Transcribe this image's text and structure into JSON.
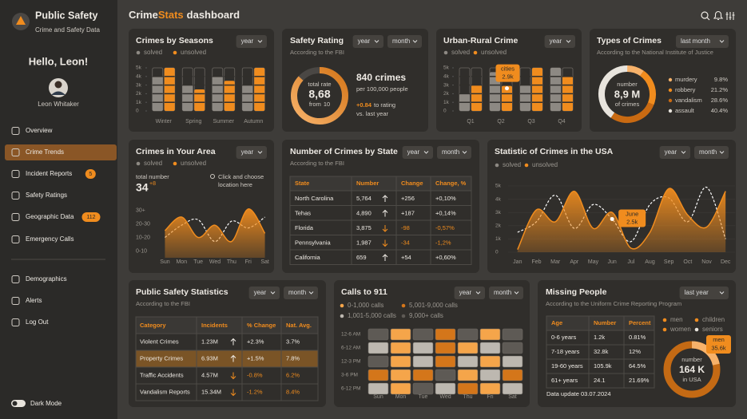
{
  "sidebar": {
    "brand": "Public Safety",
    "tagline": "Crime and Safety Data",
    "greeting": "Hello, Leon!",
    "user": "Leon Whitaker",
    "nav": [
      {
        "label": "Overview"
      },
      {
        "label": "Crime Trends",
        "active": true
      },
      {
        "label": "Incident Reports",
        "badge": "5"
      },
      {
        "label": "Safety Ratings"
      },
      {
        "label": "Geographic Data",
        "badge": "112"
      },
      {
        "label": "Emergency Calls"
      }
    ],
    "nav2": [
      {
        "label": "Demographics"
      },
      {
        "label": "Alerts"
      },
      {
        "label": "Log Out"
      }
    ],
    "dark_mode": "Dark Mode"
  },
  "header": {
    "title": [
      "Crime",
      "Stats",
      "dashboard"
    ]
  },
  "seasons": {
    "title": "Crimes by Seasons",
    "filters": [
      "year"
    ],
    "categories": [
      "Winter",
      "Spring",
      "Summer",
      "Autumn"
    ],
    "series": [
      {
        "name": "solved",
        "color": "#8d8983",
        "values": [
          4000,
          3000,
          4000,
          3000
        ]
      },
      {
        "name": "unsolved",
        "color": "#f08c1e",
        "values": [
          5000,
          2500,
          3500,
          5000
        ]
      }
    ],
    "ylim": [
      0,
      5000
    ],
    "yticks": [
      0,
      {
        "value": 1000,
        "label": "1k"
      },
      {
        "value": 2000,
        "label": "2k"
      },
      {
        "value": 3000,
        "label": "3k"
      },
      {
        "value": 4000,
        "label": "4k"
      },
      {
        "value": 5000,
        "label": "5k"
      }
    ]
  },
  "safety": {
    "title": "Safety Rating",
    "subtitle": "According to the FBI",
    "filters": [
      "year",
      "month"
    ],
    "rate_caption": "total rate",
    "rate": {
      "value": 8.68,
      "label": "8,68"
    },
    "max_prefix": "from",
    "max": 10,
    "crimes": "840 crimes",
    "crimes_note": "per 100,000 people",
    "delta": "+0.84",
    "delta_note": "to rating",
    "delta_note2": "vs. last year"
  },
  "urban": {
    "title": "Urban-Rural Crime",
    "filters": [
      "year"
    ],
    "categories": [
      "Q1",
      "Q2",
      "Q3",
      "Q4"
    ],
    "series": [
      {
        "name": "solved",
        "color": "#8d8983",
        "values": [
          2000,
          4500,
          3000,
          5000
        ]
      },
      {
        "name": "unsolved",
        "color": "#f08c1e",
        "values": [
          3000,
          2900,
          5000,
          4000
        ]
      }
    ],
    "ylim": [
      0,
      5000
    ],
    "yticks": [
      0,
      {
        "value": 1000,
        "label": "1k"
      },
      {
        "value": 2000,
        "label": "2k"
      },
      {
        "value": 3000,
        "label": "3k"
      },
      {
        "value": 4000,
        "label": "4k"
      },
      {
        "value": 5000,
        "label": "5k"
      }
    ],
    "tooltip": {
      "title": "cities",
      "label": "2.9k"
    }
  },
  "types": {
    "title": "Types of Crimes",
    "filters": [
      "last month"
    ],
    "subtitle": "According to the National Institute of Justice",
    "center": [
      "number",
      "8,9 M",
      "of crimes"
    ],
    "categories": [
      "murdery",
      "robbery",
      "vandalism",
      "assault"
    ],
    "values": [
      9.8,
      21.2,
      28.6,
      40.4
    ],
    "value_labels": [
      "9.8%",
      "21.2%",
      "28.6%",
      "40.4%"
    ],
    "colors": [
      "#f7b26a",
      "#f08c1e",
      "#c96a12",
      "#e8e4dd"
    ]
  },
  "area": {
    "title": "Crimes in Your Area",
    "filters": [
      "year"
    ],
    "total_caption": "total number",
    "total": 34,
    "total_delta": "+8",
    "hint": [
      "Click and choose",
      "location here"
    ],
    "categories": [
      "Sun",
      "Mon",
      "Tue",
      "Wed",
      "Thu",
      "Fri",
      "Sat"
    ],
    "ybands": [
      "0-10",
      "10-20",
      "20-30",
      "30+"
    ],
    "ylim": [
      0,
      40
    ],
    "series": [
      {
        "name": "solved",
        "color": "#ffffff",
        "values": [
          15,
          24,
          28,
          12,
          27,
          22,
          30
        ]
      },
      {
        "name": "unsolved",
        "color": "#f08c1e",
        "values": [
          20,
          30,
          15,
          24,
          12,
          36,
          18
        ]
      }
    ]
  },
  "states": {
    "title": "Number of Crimes by State",
    "subtitle": "According to the FBI",
    "filters": [
      "year",
      "month"
    ],
    "columns": [
      "State",
      "Number",
      "Change",
      "Change, %"
    ],
    "rows": [
      [
        "North Carolina",
        "5,764",
        "+256",
        "+0,10%"
      ],
      [
        "Tehas",
        "4,890",
        "+187",
        "+0,14%"
      ],
      [
        "Florida",
        "3,875",
        "-98",
        "-0,57%"
      ],
      [
        "Pennsylvania",
        "1,987",
        "-34",
        "-1,2%"
      ],
      [
        "California",
        "659",
        "+54",
        "+0,60%"
      ]
    ]
  },
  "usa": {
    "title": "Statistic of Crimes in the USA",
    "filters": [
      "year",
      "month"
    ],
    "categories": [
      "Jan",
      "Feb",
      "Mar",
      "Apr",
      "May",
      "Jun",
      "Jul",
      "Aug",
      "Sep",
      "Oct",
      "Nov",
      "Dec"
    ],
    "ylim": [
      0,
      5000
    ],
    "yticks": [
      0,
      {
        "value": 1000,
        "label": "1k"
      },
      {
        "value": 2000,
        "label": "2k"
      },
      {
        "value": 3000,
        "label": "3k"
      },
      {
        "value": 4000,
        "label": "4k"
      },
      {
        "value": 5000,
        "label": "5k"
      }
    ],
    "series": [
      {
        "name": "solved",
        "color": "#ffffff",
        "values": [
          1500,
          2300,
          4300,
          1800,
          3600,
          2500,
          800,
          3600,
          4100,
          2300,
          4900,
          1000
        ]
      },
      {
        "name": "unsolved",
        "color": "#f08c1e",
        "values": [
          200,
          3200,
          2300,
          4600,
          1800,
          3000,
          300,
          1500,
          4800,
          2800,
          1900,
          4600
        ]
      }
    ],
    "tooltip": {
      "title": "June",
      "label": "2.5k"
    }
  },
  "stats": {
    "title": "Public Safety Statistics",
    "subtitle": "According to the FBI",
    "filters": [
      "year",
      "month"
    ],
    "columns": [
      "Category",
      "Incidents",
      "% Change",
      "Nat. Avg."
    ],
    "rows": [
      {
        "category": "Violent Crimes",
        "incidents": "1.23M",
        "change": "+2.3%",
        "avg": "3.7%"
      },
      {
        "category": "Property Crimes",
        "incidents": "6.93M",
        "change": "+1.5%",
        "avg": "7.8%",
        "highlighted": true
      },
      {
        "category": "Traffic Accidents",
        "incidents": "4.57M",
        "change": "-0.8%",
        "avg": "6.2%"
      },
      {
        "category": "Vandalism Reports",
        "incidents": "15.34M",
        "change": "-1.2%",
        "avg": "8.4%"
      }
    ]
  },
  "calls": {
    "title": "Calls to 911",
    "filters": [
      "year",
      "month"
    ],
    "legend": [
      {
        "name": "0-1,000 calls",
        "color": "#f5a54a"
      },
      {
        "name": "5,001-9,000 calls",
        "color": "#d4761a"
      },
      {
        "name": "1,001-5,000 calls",
        "color": "#bdb8b0"
      },
      {
        "name": "9,000+ calls",
        "color": "#5e5a55"
      }
    ],
    "rows": [
      "12-6 AM",
      "6-12 AM",
      "12-3 PM",
      "3-6 PM",
      "6-12 PM"
    ],
    "days": [
      "Sun",
      "Mon",
      "Tue",
      "Wed",
      "Thu",
      "Fri",
      "Sat"
    ],
    "levels": [
      [
        3,
        0,
        3,
        1,
        3,
        0,
        3
      ],
      [
        2,
        0,
        2,
        1,
        0,
        2,
        3
      ],
      [
        3,
        0,
        2,
        1,
        2,
        0,
        2
      ],
      [
        1,
        0,
        1,
        3,
        0,
        2,
        1
      ],
      [
        2,
        0,
        3,
        2,
        1,
        0,
        2
      ]
    ]
  },
  "missing": {
    "title": "Missing People",
    "filters": [
      "last year"
    ],
    "subtitle": "According to the Uniform Crime Reporting Program",
    "columns": [
      "Age",
      "Number",
      "Percent"
    ],
    "rows": [
      [
        "0-6 years",
        "1.2k",
        "0.81%"
      ],
      [
        "7-18 years",
        "32.8k",
        "12%"
      ],
      [
        "19-60 years",
        "105.9k",
        "64.5%"
      ],
      [
        "61+ years",
        "24.1",
        "21.69%"
      ]
    ],
    "legend": [
      {
        "name": "men",
        "color": "#f08c1e"
      },
      {
        "name": "children",
        "color": "#f08c1e"
      },
      {
        "name": "women",
        "color": "#f08c1e"
      },
      {
        "name": "seniors",
        "color": "#e8e4dd"
      }
    ],
    "center": [
      "number",
      "in USA"
    ],
    "total": {
      "value": 164000,
      "label": "164 K"
    },
    "tooltip": {
      "title": "men",
      "value": 35600,
      "label": "35.6k"
    },
    "update": "Data update 03.07.2024"
  }
}
